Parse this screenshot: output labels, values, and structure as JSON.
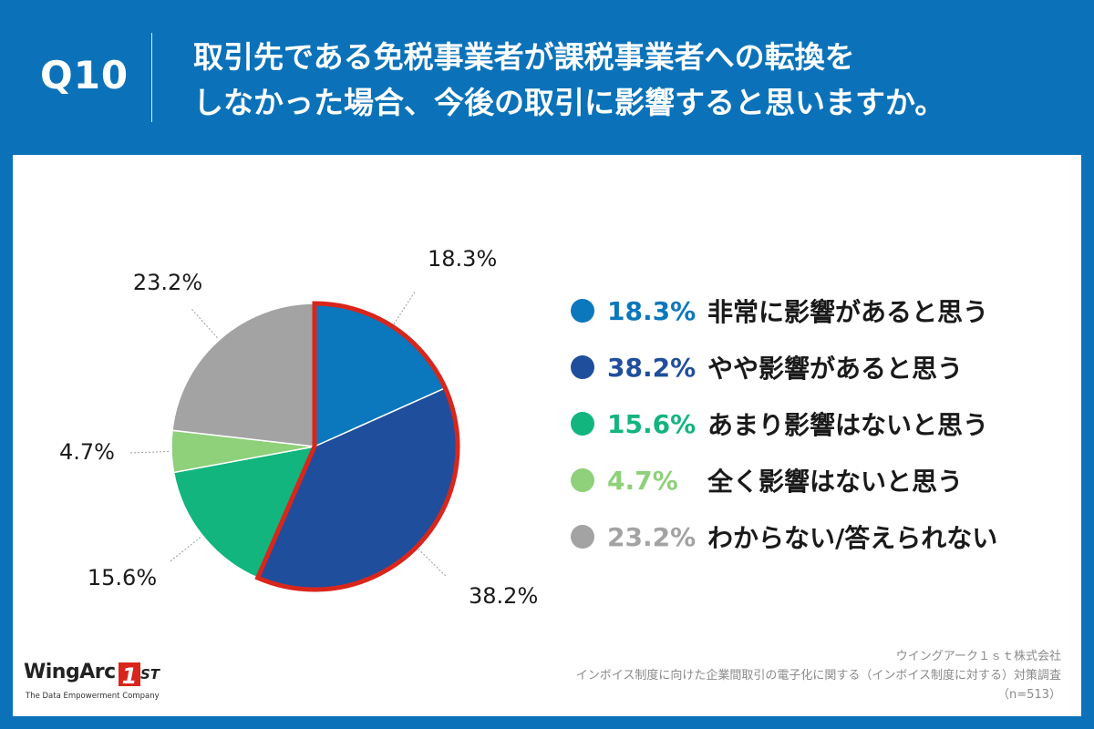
{
  "header": {
    "question_label": "Q10",
    "title_line1": "取引先である免税事業者が課税事業者への転換を",
    "title_line2": "しなかった場合、今後の取引に影響すると思いますか。"
  },
  "chart_data": {
    "type": "pie",
    "categories": [
      "非常に影響があると思う",
      "やや影響があると思う",
      "あまり影響はないと思う",
      "全く影響はないと思う",
      "わからない/答えられない"
    ],
    "values": [
      18.3,
      38.2,
      15.6,
      4.7,
      23.2
    ],
    "value_labels": [
      "18.3%",
      "38.2%",
      "15.6%",
      "4.7%",
      "23.2%"
    ],
    "colors": [
      "#0b77bd",
      "#1f4e9c",
      "#12b57d",
      "#8fd07a",
      "#a3a3a3"
    ],
    "highlight": {
      "slices": [
        0,
        1
      ],
      "outline_color": "#d9261c"
    },
    "start": "12 o'clock",
    "direction": "clockwise",
    "legend_position": "right"
  },
  "footer": {
    "company": "ウイングアーク１ｓｔ株式会社",
    "survey": "インボイス制度に向けた企業間取引の電子化に関する（インボイス制度に対する）対策調査",
    "sample": "（n=513）"
  },
  "logo": {
    "name": "WingArc",
    "mark": "1",
    "suffix": "ST",
    "tagline": "The Data Empowerment Company"
  }
}
